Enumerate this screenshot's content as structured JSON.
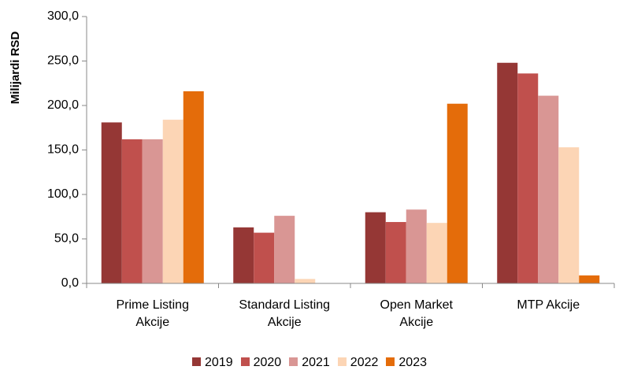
{
  "chart_data": {
    "type": "bar",
    "y_label": "Milijardi RSD",
    "categories": [
      "Prime Listing Akcije",
      "Standard Listing Akcije",
      "Open Market Akcije",
      "MTP Akcije"
    ],
    "series": [
      {
        "name": "2019",
        "color": "#953735",
        "values": [
          181,
          63,
          80,
          248
        ]
      },
      {
        "name": "2020",
        "color": "#c0504d",
        "values": [
          162,
          57,
          69,
          236
        ]
      },
      {
        "name": "2021",
        "color": "#d99694",
        "values": [
          162,
          76,
          83,
          211
        ]
      },
      {
        "name": "2022",
        "color": "#fcd5b5",
        "values": [
          184,
          5,
          68,
          153
        ]
      },
      {
        "name": "2023",
        "color": "#e46c0a",
        "values": [
          216,
          0,
          202,
          9
        ]
      }
    ],
    "ylim": [
      0,
      300
    ],
    "yticks": [
      {
        "value": 0,
        "label": "0,0"
      },
      {
        "value": 50,
        "label": "50,0"
      },
      {
        "value": 100,
        "label": "100,0"
      },
      {
        "value": 150,
        "label": "150,0"
      },
      {
        "value": 200,
        "label": "200,0"
      },
      {
        "value": 250,
        "label": "250,0"
      },
      {
        "value": 300,
        "label": "300,0"
      }
    ],
    "grid": false
  }
}
